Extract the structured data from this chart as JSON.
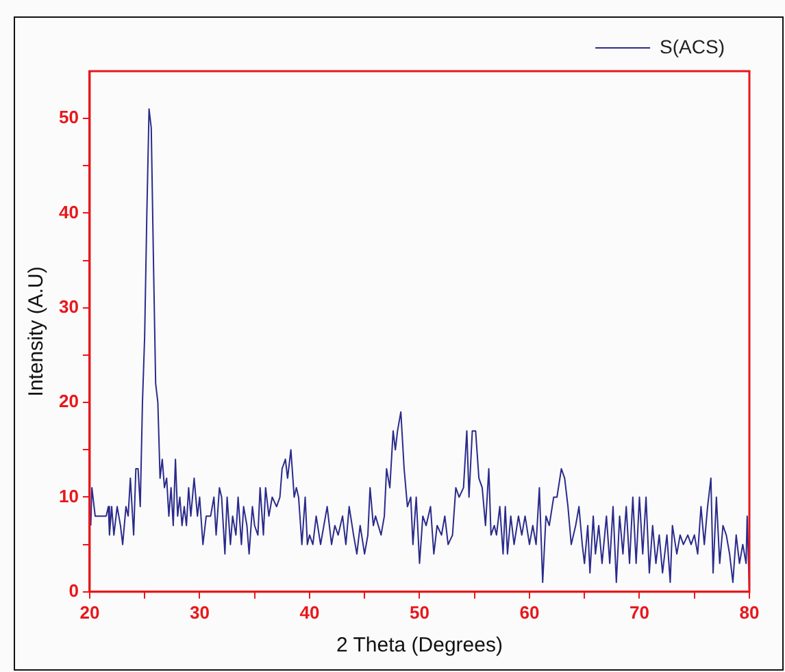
{
  "chart_data": {
    "type": "line",
    "xlabel": "2 Theta (Degrees)",
    "ylabel": "Intensity (A.U)",
    "xlim": [
      20,
      80
    ],
    "xticks": [
      20,
      {
        "value": 25,
        "label": null
      },
      30,
      {
        "value": 35,
        "label": null
      },
      40,
      {
        "value": 45,
        "label": null
      },
      50,
      {
        "value": 55,
        "label": null
      },
      60,
      {
        "value": 65,
        "label": null
      },
      70,
      {
        "value": 75,
        "label": null
      },
      80
    ],
    "ylim": [
      0,
      55
    ],
    "yticks": [
      0,
      {
        "value": 5,
        "label": null
      },
      10,
      {
        "value": 15,
        "label": null
      },
      20,
      {
        "value": 25,
        "label": null
      },
      30,
      {
        "value": 35,
        "label": null
      },
      40,
      {
        "value": 45,
        "label": null
      },
      50
    ],
    "grid": false,
    "legend": "top right",
    "marker": "none",
    "line_style": "solid",
    "series": [
      {
        "name": "S(ACS)",
        "color": "#2a2a8c",
        "x": [
          20.1,
          20.2,
          20.5,
          21,
          21.5,
          21.7,
          21.8,
          22,
          22.2,
          22.5,
          22.8,
          23,
          23.3,
          23.5,
          23.7,
          24,
          24.2,
          24.4,
          24.6,
          24.8,
          25,
          25.2,
          25.4,
          25.6,
          25.8,
          26,
          26.2,
          26.4,
          26.6,
          26.8,
          27,
          27.2,
          27.4,
          27.6,
          27.8,
          28,
          28.2,
          28.4,
          28.6,
          28.8,
          29,
          29.2,
          29.5,
          29.8,
          30,
          30.3,
          30.6,
          31,
          31.3,
          31.5,
          31.8,
          32,
          32.3,
          32.5,
          32.8,
          33,
          33.3,
          33.5,
          33.8,
          34,
          34.3,
          34.5,
          34.8,
          35,
          35.3,
          35.5,
          35.8,
          36,
          36.3,
          36.6,
          37,
          37.3,
          37.5,
          37.8,
          38,
          38.3,
          38.6,
          38.8,
          39,
          39.3,
          39.6,
          39.8,
          40,
          40.3,
          40.6,
          41,
          41.3,
          41.6,
          42,
          42.3,
          42.6,
          43,
          43.3,
          43.6,
          44,
          44.3,
          44.6,
          45,
          45.3,
          45.5,
          45.8,
          46,
          46.5,
          46.8,
          47,
          47.3,
          47.6,
          47.8,
          48,
          48.3,
          48.6,
          48.9,
          49.2,
          49.4,
          49.7,
          50,
          50.3,
          50.6,
          51,
          51.3,
          51.6,
          52,
          52.3,
          52.6,
          53,
          53.3,
          53.6,
          54,
          54.3,
          54.5,
          54.8,
          55.1,
          55.4,
          55.7,
          56,
          56.3,
          56.5,
          56.8,
          57,
          57.3,
          57.6,
          57.8,
          58,
          58.3,
          58.6,
          59,
          59.3,
          59.6,
          60,
          60.3,
          60.6,
          60.9,
          61.2,
          61.5,
          61.8,
          62.2,
          62.5,
          62.9,
          63.2,
          63.5,
          63.8,
          64.2,
          64.5,
          64.8,
          65,
          65.3,
          65.5,
          65.8,
          66,
          66.3,
          66.6,
          67,
          67.3,
          67.6,
          67.9,
          68.2,
          68.5,
          68.8,
          69.1,
          69.4,
          69.7,
          70,
          70.3,
          70.6,
          70.9,
          71.2,
          71.5,
          71.8,
          72.1,
          72.5,
          72.8,
          73,
          73.4,
          73.7,
          74,
          74.4,
          74.7,
          75,
          75.3,
          75.6,
          75.9,
          76.2,
          76.5,
          76.7,
          77,
          77.3,
          77.6,
          77.9,
          78.2,
          78.5,
          78.8,
          79.1,
          79.4,
          79.7,
          79.8,
          80
        ],
        "values": [
          7,
          11,
          8,
          8,
          8,
          9,
          6,
          9,
          6,
          9,
          7,
          5,
          9,
          8,
          12,
          6,
          13,
          13,
          9,
          20,
          27,
          40,
          51,
          49,
          35,
          22,
          20,
          12,
          14,
          11,
          12,
          8,
          11,
          7,
          14,
          8,
          10,
          7,
          9,
          7,
          11,
          8,
          12,
          8,
          10,
          5,
          8,
          8,
          10,
          6,
          11,
          10,
          4,
          10,
          5,
          8,
          6,
          10,
          5,
          9,
          7,
          4,
          9,
          7,
          6,
          11,
          6,
          11,
          8,
          10,
          9,
          10,
          13,
          14,
          12,
          15,
          10,
          11,
          10,
          5,
          10,
          5,
          6,
          5,
          8,
          5,
          7,
          9,
          5,
          7,
          6,
          8,
          5,
          9,
          6,
          4,
          7,
          4,
          6,
          11,
          7,
          8,
          6,
          8,
          13,
          11,
          17,
          15,
          17,
          19,
          13,
          9,
          10,
          5,
          10,
          3,
          8,
          7,
          9,
          4,
          7,
          6,
          8,
          5,
          6,
          11,
          10,
          11,
          17,
          10,
          17,
          17,
          12,
          11,
          7,
          13,
          6,
          7,
          6,
          9,
          4,
          9,
          4,
          8,
          5,
          8,
          6,
          8,
          5,
          7,
          5,
          11,
          1,
          8,
          7,
          10,
          10,
          13,
          12,
          9,
          5,
          7,
          9,
          5,
          3,
          7,
          2,
          8,
          4,
          7,
          3,
          8,
          3,
          9,
          1,
          8,
          4,
          9,
          3,
          10,
          3,
          10,
          4,
          10,
          2,
          7,
          3,
          6,
          2,
          6,
          1,
          7,
          4,
          6,
          5,
          6,
          5,
          6,
          4,
          9,
          5,
          9,
          12,
          2,
          10,
          3,
          7,
          6,
          4,
          1,
          6,
          3,
          5,
          3,
          8,
          0
        ]
      }
    ]
  }
}
